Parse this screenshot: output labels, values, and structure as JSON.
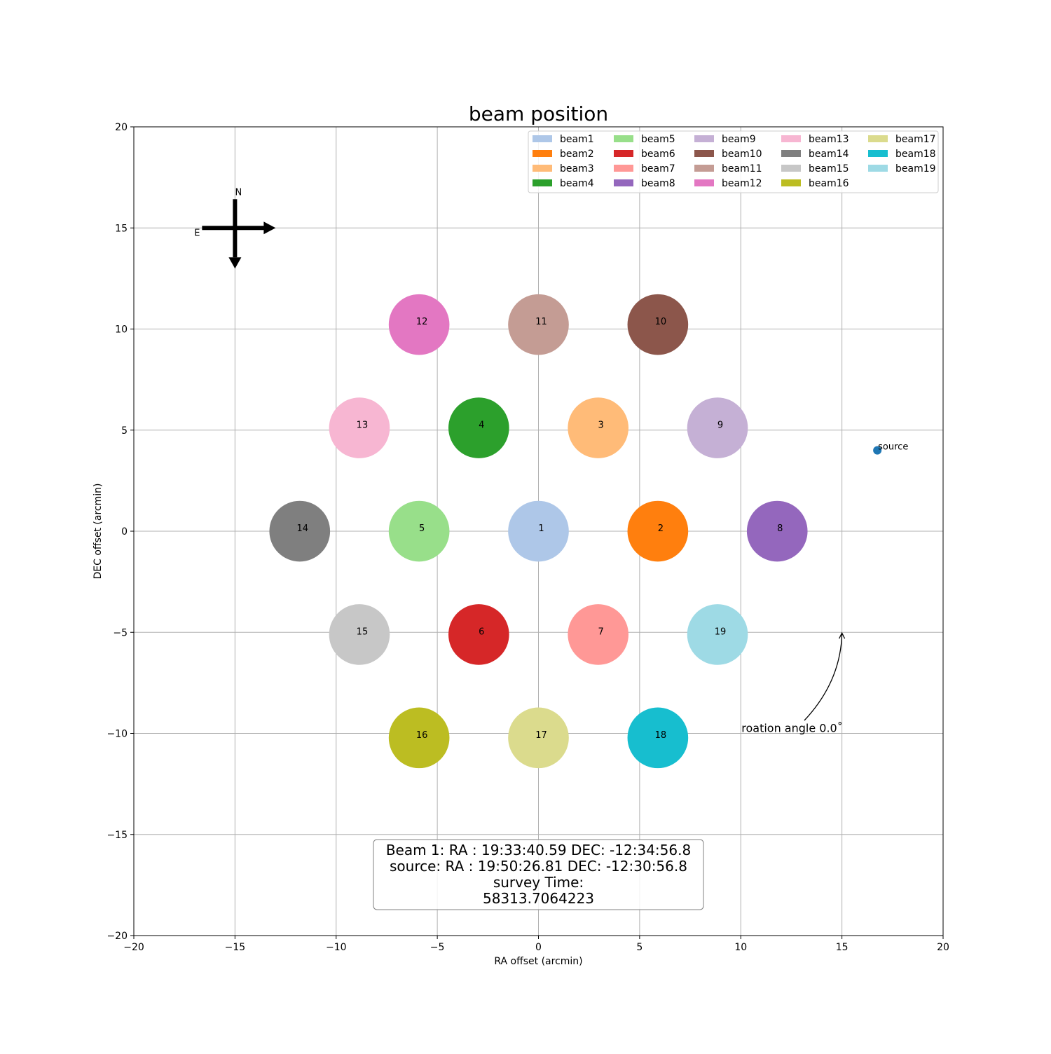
{
  "chart_data": {
    "type": "scatter",
    "title": "beam position",
    "xlabel": "RA offset (arcmin)",
    "ylabel": "DEC offset (arcmin)",
    "xlim": [
      -20,
      20
    ],
    "ylim": [
      -20,
      20
    ],
    "x_ticks": [
      -20,
      -15,
      -10,
      -5,
      0,
      5,
      10,
      15,
      20
    ],
    "y_ticks": [
      -20,
      -15,
      -10,
      -5,
      0,
      5,
      10,
      15,
      20
    ],
    "x_tick_labels": [
      "−20",
      "−15",
      "−10",
      "−5",
      "0",
      "5",
      "10",
      "15",
      "20"
    ],
    "y_tick_labels": [
      "−20",
      "−15",
      "−10",
      "−5",
      "0",
      "5",
      "10",
      "15",
      "20"
    ],
    "grid": true,
    "legend_placement": "top-right",
    "beam_radius": 1.5,
    "beams": [
      {
        "name": "beam1",
        "label": "1",
        "x": 0.0,
        "y": 0.0,
        "color": "#aec7e8"
      },
      {
        "name": "beam2",
        "label": "2",
        "x": 5.9,
        "y": 0.0,
        "color": "#ff7f0e"
      },
      {
        "name": "beam3",
        "label": "3",
        "x": 2.95,
        "y": 5.11,
        "color": "#ffbb78"
      },
      {
        "name": "beam4",
        "label": "4",
        "x": -2.95,
        "y": 5.11,
        "color": "#2ca02c"
      },
      {
        "name": "beam5",
        "label": "5",
        "x": -5.9,
        "y": 0.0,
        "color": "#98df8a"
      },
      {
        "name": "beam6",
        "label": "6",
        "x": -2.95,
        "y": -5.11,
        "color": "#d62728"
      },
      {
        "name": "beam7",
        "label": "7",
        "x": 2.95,
        "y": -5.11,
        "color": "#ff9896"
      },
      {
        "name": "beam8",
        "label": "8",
        "x": 11.8,
        "y": 0.0,
        "color": "#9467bd"
      },
      {
        "name": "beam9",
        "label": "9",
        "x": 8.85,
        "y": 5.11,
        "color": "#c5b0d5"
      },
      {
        "name": "beam10",
        "label": "10",
        "x": 5.9,
        "y": 10.22,
        "color": "#8c564b"
      },
      {
        "name": "beam11",
        "label": "11",
        "x": 0.0,
        "y": 10.22,
        "color": "#c49c94"
      },
      {
        "name": "beam12",
        "label": "12",
        "x": -5.9,
        "y": 10.22,
        "color": "#e377c2"
      },
      {
        "name": "beam13",
        "label": "13",
        "x": -8.85,
        "y": 5.11,
        "color": "#f7b6d2"
      },
      {
        "name": "beam14",
        "label": "14",
        "x": -11.8,
        "y": 0.0,
        "color": "#7f7f7f"
      },
      {
        "name": "beam15",
        "label": "15",
        "x": -8.85,
        "y": -5.11,
        "color": "#c7c7c7"
      },
      {
        "name": "beam16",
        "label": "16",
        "x": -5.9,
        "y": -10.22,
        "color": "#bcbd22"
      },
      {
        "name": "beam17",
        "label": "17",
        "x": 0.0,
        "y": -10.22,
        "color": "#dbdb8d"
      },
      {
        "name": "beam18",
        "label": "18",
        "x": 5.9,
        "y": -10.22,
        "color": "#17becf"
      },
      {
        "name": "beam19",
        "label": "19",
        "x": 8.85,
        "y": -5.11,
        "color": "#9edae5"
      }
    ],
    "source": {
      "label": "source",
      "x": 16.75,
      "y": 4.0,
      "color": "#1f77b4"
    },
    "compass": {
      "north": "N",
      "east": "E",
      "center_x": -15,
      "center_y": 15
    },
    "annotation": {
      "text": "roation angle 0.0˚",
      "x": 10.0,
      "y": -10.0,
      "arrow_to_x": 15.0,
      "arrow_to_y": -5.0
    },
    "info_box": {
      "lines": [
        "Beam 1: RA : 19:33:40.59  DEC: -12:34:56.8",
        "source: RA : 19:50:26.81  DEC: -12:30:56.8",
        "survey Time:",
        "58313.7064223"
      ]
    }
  }
}
